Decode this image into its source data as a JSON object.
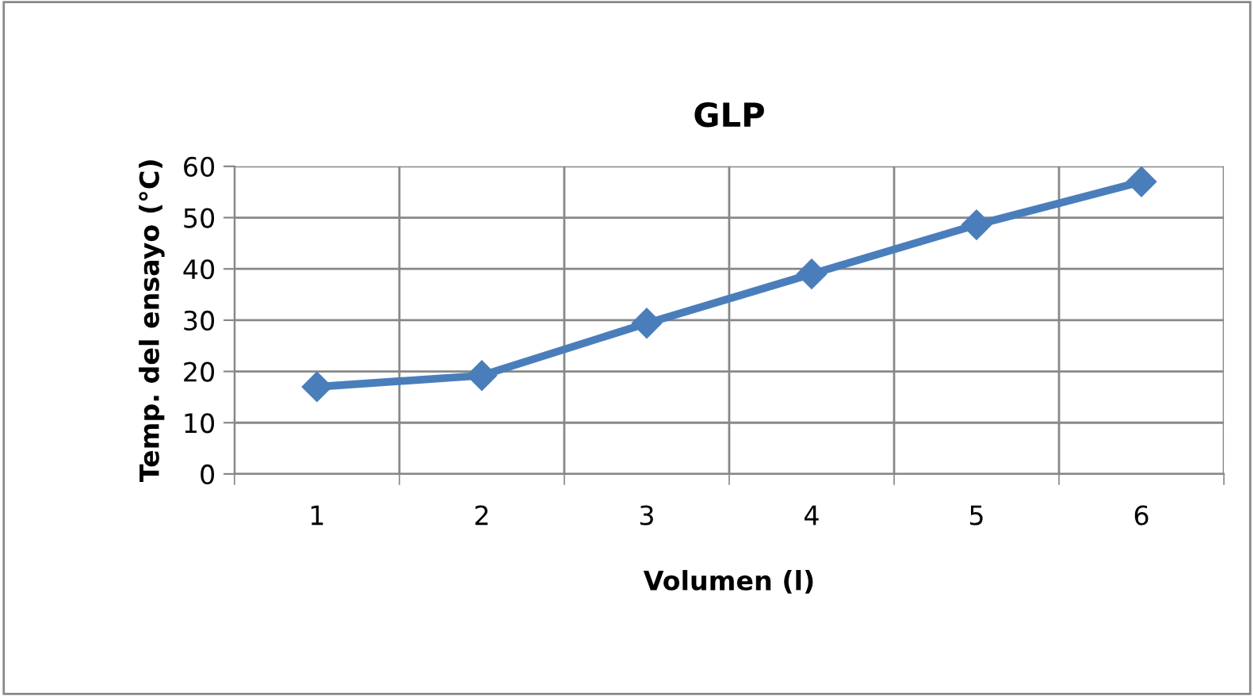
{
  "chart_data": {
    "type": "line",
    "title": "GLP",
    "xlabel": "Volumen (l)",
    "ylabel": "Temp. del ensayo (°C)",
    "categories": [
      "1",
      "2",
      "3",
      "4",
      "5",
      "6"
    ],
    "series": [
      {
        "color": "#4a7ebb",
        "values": [
          17,
          19.2,
          29.4,
          39,
          48.6,
          57
        ]
      }
    ],
    "ylim": [
      0,
      60
    ],
    "yticks": [
      0,
      10,
      20,
      30,
      40,
      50,
      60
    ],
    "grid": true,
    "marker": "diamond",
    "line_style": "solid"
  }
}
